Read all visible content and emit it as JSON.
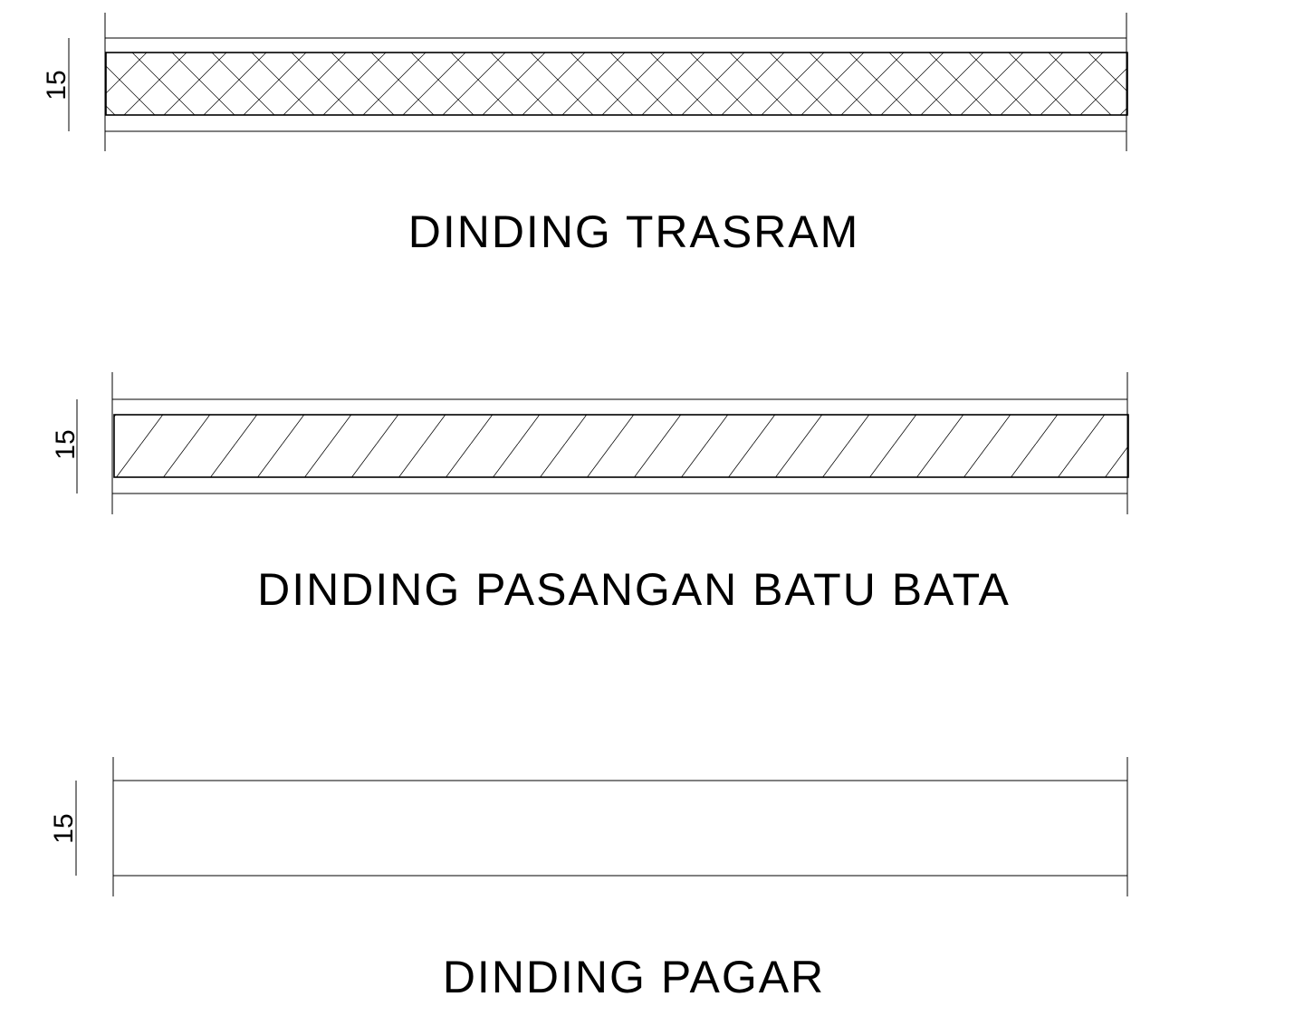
{
  "sections": [
    {
      "id": "trasram",
      "title": "DINDING TRASRAM",
      "dimension": "15",
      "hatch": "crosshatch"
    },
    {
      "id": "bata",
      "title": "DINDING PASANGAN BATU BATA",
      "dimension": "15",
      "hatch": "diagonal"
    },
    {
      "id": "pagar",
      "title": "DINDING PAGAR",
      "dimension": "15",
      "hatch": "none"
    }
  ]
}
